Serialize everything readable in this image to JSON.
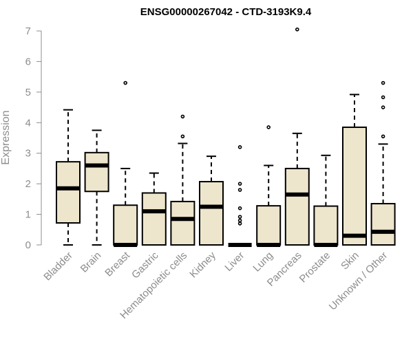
{
  "chart_data": {
    "type": "boxplot",
    "title": "ENSG00000267042 - CTD-3193K9.4",
    "xlabel": "",
    "ylabel": "Expression",
    "ylim": [
      0,
      7
    ],
    "yticks": [
      0,
      1,
      2,
      3,
      4,
      5,
      6,
      7
    ],
    "colors": {
      "box_fill": "#ede5cc",
      "stroke": "#000000",
      "axis": "#8c8c8c"
    },
    "categories": [
      "Bladder",
      "Brain",
      "Breast",
      "Gastric",
      "Hematopoietic cells",
      "Kidney",
      "Liver",
      "Lung",
      "Pancreas",
      "Prostate",
      "Skin",
      "Unknown / Other"
    ],
    "boxes": [
      {
        "min": 0.0,
        "q1": 0.72,
        "median": 1.85,
        "q3": 2.72,
        "max": 4.42,
        "outliers": []
      },
      {
        "min": 0.0,
        "q1": 1.75,
        "median": 2.6,
        "q3": 3.02,
        "max": 3.75,
        "outliers": []
      },
      {
        "min": 0.0,
        "q1": 0.0,
        "median": 0.0,
        "q3": 1.3,
        "max": 2.5,
        "outliers": [
          5.3
        ]
      },
      {
        "min": 0.0,
        "q1": 0.0,
        "median": 1.1,
        "q3": 1.7,
        "max": 2.35,
        "outliers": []
      },
      {
        "min": 0.0,
        "q1": 0.0,
        "median": 0.85,
        "q3": 1.42,
        "max": 3.32,
        "outliers": [
          3.55,
          4.2
        ]
      },
      {
        "min": 0.0,
        "q1": 0.0,
        "median": 1.25,
        "q3": 2.07,
        "max": 2.9,
        "outliers": []
      },
      {
        "min": 0.0,
        "q1": 0.0,
        "median": 0.0,
        "q3": 0.0,
        "max": 0.0,
        "outliers": [
          0.7,
          0.8,
          0.92,
          1.2,
          1.8,
          2.0,
          3.2
        ]
      },
      {
        "min": 0.0,
        "q1": 0.0,
        "median": 0.0,
        "q3": 1.28,
        "max": 2.6,
        "outliers": [
          3.85
        ]
      },
      {
        "min": 0.0,
        "q1": 0.0,
        "median": 1.65,
        "q3": 2.5,
        "max": 3.65,
        "outliers": [
          7.05
        ]
      },
      {
        "min": 0.0,
        "q1": 0.0,
        "median": 0.0,
        "q3": 1.27,
        "max": 2.93,
        "outliers": []
      },
      {
        "min": 0.0,
        "q1": 0.0,
        "median": 0.3,
        "q3": 3.85,
        "max": 4.92,
        "outliers": []
      },
      {
        "min": 0.0,
        "q1": 0.0,
        "median": 0.43,
        "q3": 1.35,
        "max": 3.3,
        "outliers": [
          3.55,
          4.5,
          4.83,
          5.3
        ]
      }
    ]
  }
}
